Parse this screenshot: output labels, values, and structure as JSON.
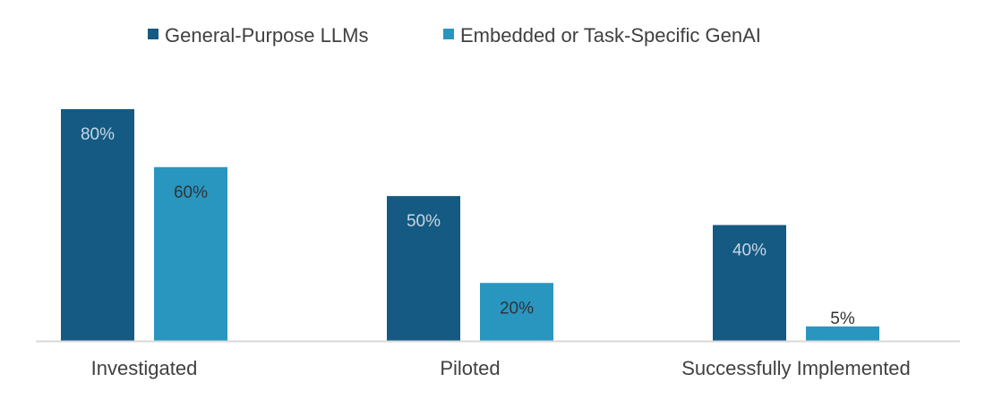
{
  "chart_data": {
    "type": "bar",
    "categories": [
      "Investigated",
      "Piloted",
      "Successfully Implemented"
    ],
    "series": [
      {
        "name": "General-Purpose LLMs",
        "values": [
          80,
          50,
          40
        ],
        "labels": [
          "80%",
          "50%",
          "40%"
        ],
        "color": "#145a82",
        "label_color": "#c9d6e3"
      },
      {
        "name": "Embedded or Task-Specific GenAI",
        "values": [
          60,
          20,
          5
        ],
        "labels": [
          "60%",
          "20%",
          "5%"
        ],
        "color": "#2996c0",
        "label_color": "#333333"
      }
    ],
    "ylim": [
      0,
      100
    ],
    "value_format": "percent",
    "legend_position": "top",
    "grid": false,
    "axis_color": "#d9d9d9"
  }
}
